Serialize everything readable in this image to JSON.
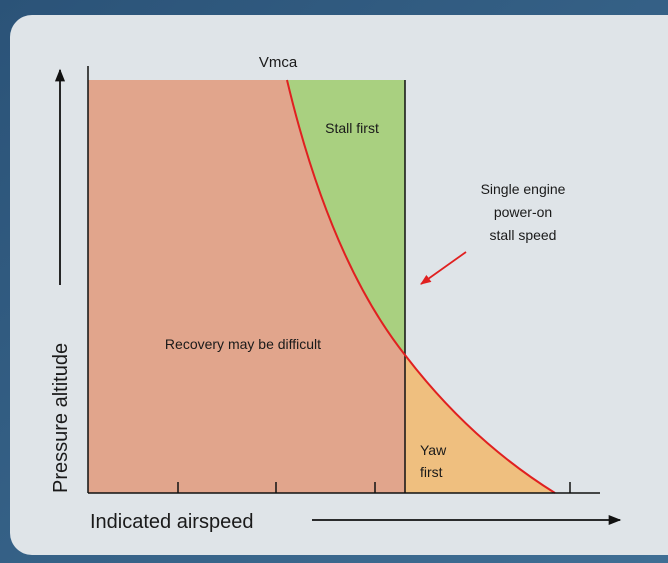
{
  "diagram": {
    "top_label": "Vmca",
    "regions": [
      "Stall first",
      "Recovery may be difficult"
    ],
    "yaw_region": [
      "Yaw",
      "first"
    ],
    "curve_label": [
      "Single engine",
      "power-on",
      "stall speed"
    ],
    "y_axis_label": "Pressure altitude",
    "x_axis_label": "Indicated airspeed"
  }
}
